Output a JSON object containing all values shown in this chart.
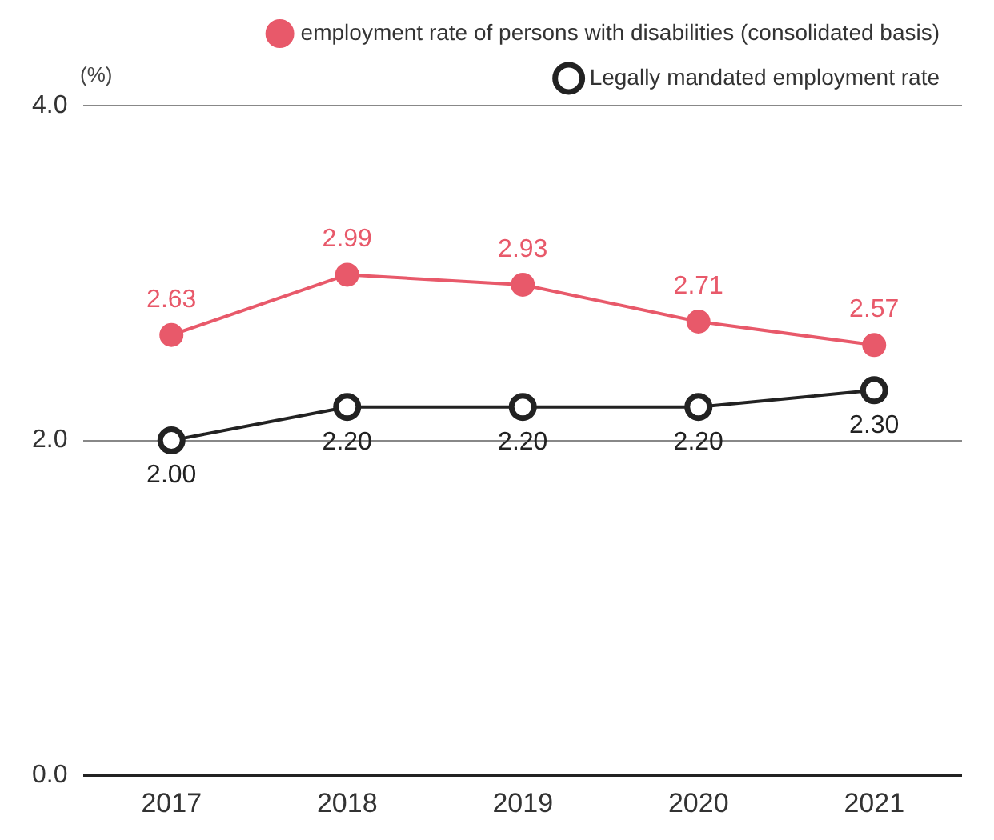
{
  "chart_data": {
    "type": "line",
    "ylabel": "(%)",
    "categories": [
      "2017",
      "2018",
      "2019",
      "2020",
      "2021"
    ],
    "series": [
      {
        "name": "employment rate of persons with disabilities (consolidated basis)",
        "color": "#e8596a",
        "values": [
          2.63,
          2.99,
          2.93,
          2.71,
          2.57
        ]
      },
      {
        "name": "Legally mandated employment rate",
        "color": "#222222",
        "values": [
          2.0,
          2.2,
          2.2,
          2.2,
          2.3
        ],
        "value_labels": [
          "2.00",
          "2.20",
          "2.20",
          "2.20",
          "2.30"
        ]
      }
    ],
    "ylim": [
      0,
      4
    ],
    "yticks": [
      {
        "value": 0,
        "label": "0.0"
      },
      {
        "value": 2,
        "label": "2.0"
      },
      {
        "value": 4,
        "label": "4.0"
      }
    ],
    "grid": "y",
    "legend": "top right",
    "marker": "circle",
    "data_labels": true
  }
}
